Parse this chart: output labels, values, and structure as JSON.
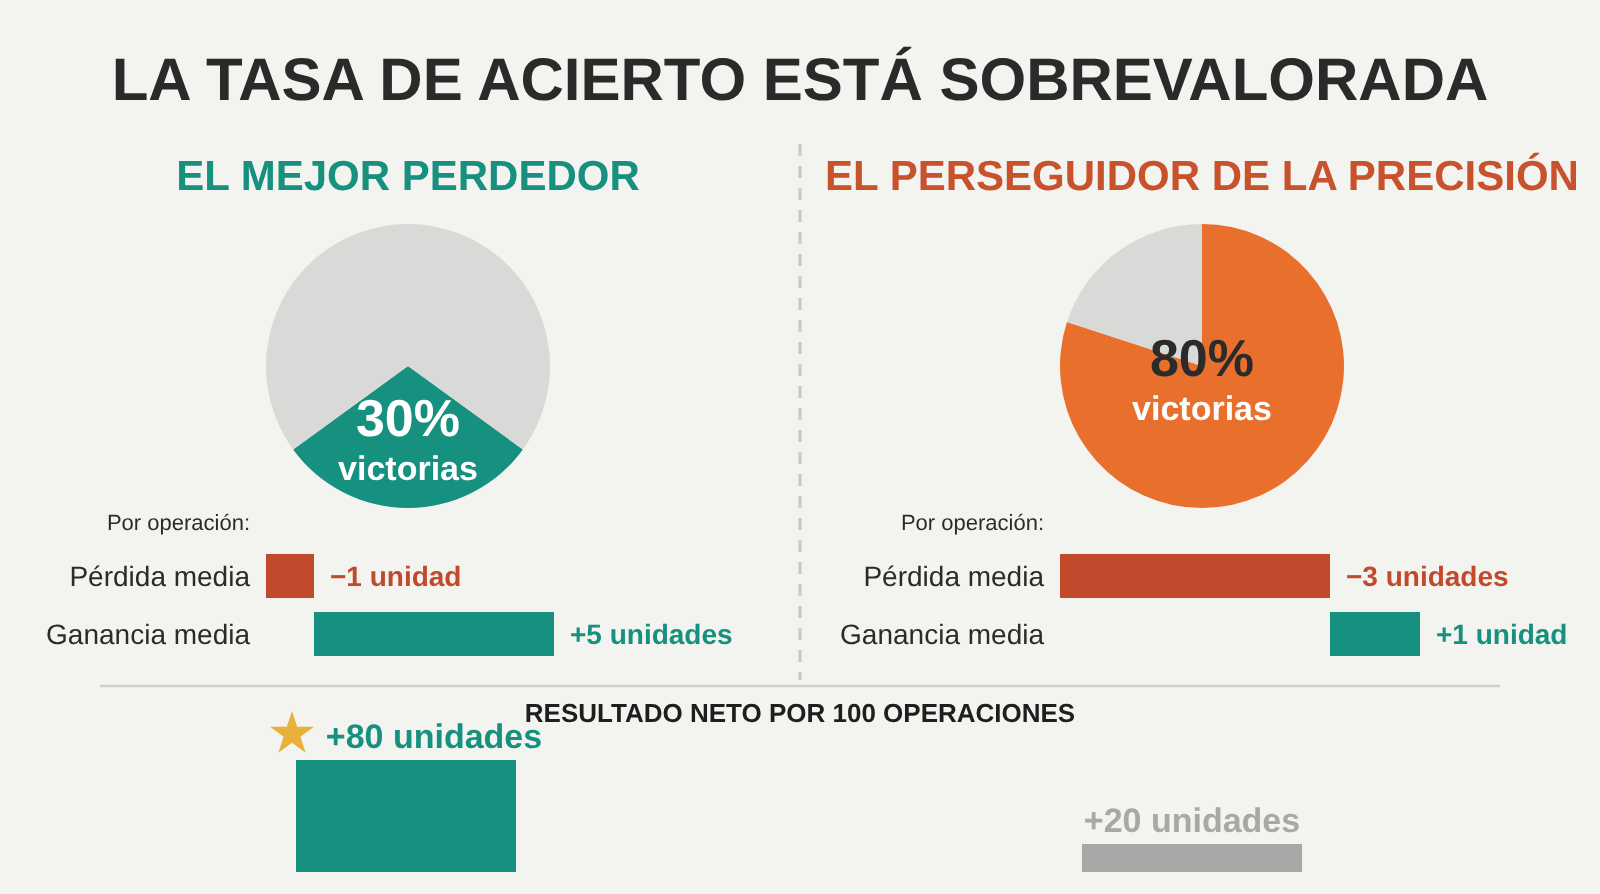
{
  "chart_data": [
    {
      "type": "other",
      "title": "LA TASA DE ACIERTO ESTÁ SOBREVALORADA"
    },
    {
      "type": "pie",
      "title": "EL MEJOR PERDEDOR",
      "categories": [
        "victorias",
        null
      ],
      "values": [
        30,
        70
      ],
      "colors": [
        "#16907f",
        "#d9d9d8"
      ],
      "value_labels": [
        "30%",
        null
      ]
    },
    {
      "type": "bar",
      "orientation": "horizontal",
      "subtitle": "Por operación:",
      "categories": [
        "Pérdida media",
        "Ganancia media"
      ],
      "values": [
        -1,
        5
      ],
      "colors": [
        "#c24a2c",
        "#16907f"
      ],
      "value_labels": [
        "−1 unidad",
        "+5 unidades"
      ]
    },
    {
      "type": "pie",
      "title": "EL PERSEGUIDOR DE LA PRECISIÓN",
      "categories": [
        "victorias",
        null
      ],
      "values": [
        80,
        20
      ],
      "colors": [
        "#e8702c",
        "#d9d9d8"
      ],
      "value_labels": [
        "80%",
        null
      ]
    },
    {
      "type": "bar",
      "orientation": "horizontal",
      "subtitle": "Por operación:",
      "categories": [
        "Pérdida media",
        "Ganancia media"
      ],
      "values": [
        -3,
        1
      ],
      "colors": [
        "#c24a2c",
        "#16907f"
      ],
      "value_labels": [
        "−3 unidades",
        "+1 unidad"
      ]
    },
    {
      "type": "bar",
      "title": "RESULTADO NETO POR 100 OPERACIONES",
      "categories": [
        null,
        null
      ],
      "values": [
        80,
        20
      ],
      "colors": [
        "#16907f",
        "#a8a8a6"
      ],
      "ylim": [
        0,
        80
      ],
      "value_labels": [
        "+80 unidades",
        "+20 unidades"
      ]
    }
  ]
}
